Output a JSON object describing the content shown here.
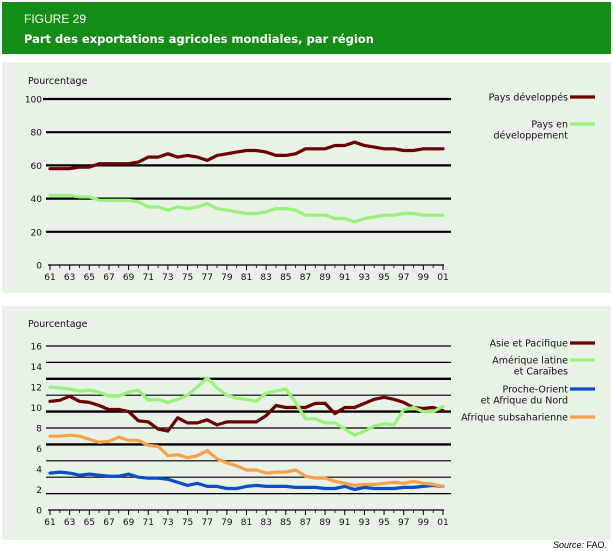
{
  "header": {
    "figure_number": "FIGURE 29",
    "title": "Part des exportations agricoles mondiales, par région",
    "background_color": "#138d15"
  },
  "source": {
    "label": "Source:",
    "value": "FAO."
  },
  "chart_data": [
    {
      "type": "line",
      "ylabel": "Pourcentage",
      "ylim": [
        0,
        100
      ],
      "yticks": [
        "0",
        "20",
        "40",
        "60",
        "80",
        "100"
      ],
      "ytick_values": [
        0,
        20,
        40,
        60,
        80,
        100
      ],
      "x": [
        1961,
        1962,
        1963,
        1964,
        1965,
        1966,
        1967,
        1968,
        1969,
        1970,
        1971,
        1972,
        1973,
        1974,
        1975,
        1976,
        1977,
        1978,
        1979,
        1980,
        1981,
        1982,
        1983,
        1984,
        1985,
        1986,
        1987,
        1988,
        1989,
        1990,
        1991,
        1992,
        1993,
        1994,
        1995,
        1996,
        1997,
        1998,
        1999,
        2000,
        2001
      ],
      "xticks": [
        "61",
        "63",
        "65",
        "67",
        "69",
        "71",
        "73",
        "75",
        "77",
        "79",
        "81",
        "83",
        "85",
        "87",
        "89",
        "91",
        "93",
        "95",
        "97",
        "99",
        "01"
      ],
      "grid": true,
      "legend_position": "right",
      "series": [
        {
          "name": "Pays développés",
          "color": "#6b0000",
          "values": [
            58,
            58,
            58,
            59,
            59,
            61,
            61,
            61,
            61,
            62,
            65,
            65,
            67,
            65,
            66,
            65,
            63,
            66,
            67,
            68,
            69,
            69,
            68,
            66,
            66,
            67,
            70,
            70,
            70,
            72,
            72,
            74,
            72,
            71,
            70,
            70,
            69,
            69,
            70,
            70,
            70
          ]
        },
        {
          "name": "Pays en\ndéveloppement",
          "name_lines": [
            "Pays en",
            "développement"
          ],
          "color": "#99f27a",
          "values": [
            42,
            42,
            42,
            41,
            41,
            39,
            39,
            39,
            39,
            38,
            35,
            35,
            33,
            35,
            34,
            35,
            37,
            34,
            33,
            32,
            31,
            31,
            32,
            34,
            34,
            33,
            30,
            30,
            30,
            28,
            28,
            26,
            28,
            29,
            30,
            30,
            31,
            31,
            30,
            30,
            30
          ]
        }
      ]
    },
    {
      "type": "line",
      "ylabel": "Pourcentage",
      "ylim": [
        0,
        16
      ],
      "yticks": [
        "0",
        "2",
        "4",
        "6",
        "8",
        "10",
        "12",
        "14",
        "16"
      ],
      "ytick_values": [
        0,
        2,
        4,
        6,
        8,
        10,
        12,
        14,
        16
      ],
      "x": [
        1961,
        1962,
        1963,
        1964,
        1965,
        1966,
        1967,
        1968,
        1969,
        1970,
        1971,
        1972,
        1973,
        1974,
        1975,
        1976,
        1977,
        1978,
        1979,
        1980,
        1981,
        1982,
        1983,
        1984,
        1985,
        1986,
        1987,
        1988,
        1989,
        1990,
        1991,
        1992,
        1993,
        1994,
        1995,
        1996,
        1997,
        1998,
        1999,
        2000,
        2001
      ],
      "xticks": [
        "61",
        "63",
        "65",
        "67",
        "69",
        "71",
        "73",
        "75",
        "77",
        "79",
        "81",
        "83",
        "85",
        "87",
        "89",
        "91",
        "93",
        "95",
        "97",
        "99",
        "01"
      ],
      "grid": true,
      "legend_position": "right",
      "series": [
        {
          "name": "Asie et Pacifique",
          "name_lines": [
            "Asie et Pacifique"
          ],
          "color": "#6b0000",
          "values": [
            10.6,
            10.7,
            11.1,
            10.6,
            10.5,
            10.2,
            9.8,
            9.8,
            9.6,
            8.7,
            8.6,
            7.9,
            7.7,
            9.0,
            8.5,
            8.5,
            8.8,
            8.3,
            8.6,
            8.6,
            8.6,
            8.6,
            9.2,
            10.2,
            10.0,
            10.0,
            10.0,
            10.4,
            10.4,
            9.4,
            10.0,
            10.0,
            10.4,
            10.8,
            11.0,
            10.8,
            10.5,
            10.0,
            9.9,
            10.0,
            9.7
          ]
        },
        {
          "name": "Amérique latine et Caraïbes",
          "name_lines": [
            "Amérique latine",
            "et Caraïbes"
          ],
          "color": "#99f27a",
          "values": [
            12.0,
            11.9,
            11.8,
            11.6,
            11.7,
            11.5,
            11.1,
            11.1,
            11.5,
            11.7,
            10.7,
            10.8,
            10.5,
            10.8,
            11.2,
            12.0,
            12.9,
            11.9,
            11.2,
            10.9,
            10.8,
            10.6,
            11.4,
            11.6,
            11.8,
            10.5,
            8.9,
            8.9,
            8.5,
            8.5,
            7.9,
            7.3,
            7.7,
            8.2,
            8.4,
            8.3,
            9.8,
            10.0,
            9.6,
            9.6,
            10.1
          ]
        },
        {
          "name": "Proche-Orient et Afrique du Nord",
          "name_lines": [
            "Proche-Orient",
            "et Afrique du Nord"
          ],
          "color": "#0a4fc4",
          "values": [
            3.6,
            3.7,
            3.6,
            3.4,
            3.5,
            3.4,
            3.3,
            3.3,
            3.5,
            3.2,
            3.1,
            3.1,
            3.0,
            2.7,
            2.4,
            2.6,
            2.3,
            2.3,
            2.1,
            2.1,
            2.3,
            2.4,
            2.3,
            2.3,
            2.3,
            2.2,
            2.2,
            2.2,
            2.1,
            2.1,
            2.3,
            2.0,
            2.2,
            2.1,
            2.1,
            2.1,
            2.2,
            2.2,
            2.3,
            2.4,
            2.3
          ]
        },
        {
          "name": "Afrique subsaharienne",
          "name_lines": [
            "Afrique subsaharienne"
          ],
          "color": "#f7a24a",
          "values": [
            7.2,
            7.2,
            7.3,
            7.2,
            6.9,
            6.6,
            6.7,
            7.1,
            6.8,
            6.8,
            6.3,
            6.2,
            5.3,
            5.4,
            5.1,
            5.3,
            5.8,
            5.0,
            4.6,
            4.3,
            3.9,
            3.9,
            3.6,
            3.7,
            3.7,
            3.9,
            3.3,
            3.1,
            3.1,
            2.8,
            2.6,
            2.4,
            2.5,
            2.5,
            2.6,
            2.7,
            2.6,
            2.8,
            2.6,
            2.5,
            2.3
          ]
        }
      ]
    }
  ]
}
